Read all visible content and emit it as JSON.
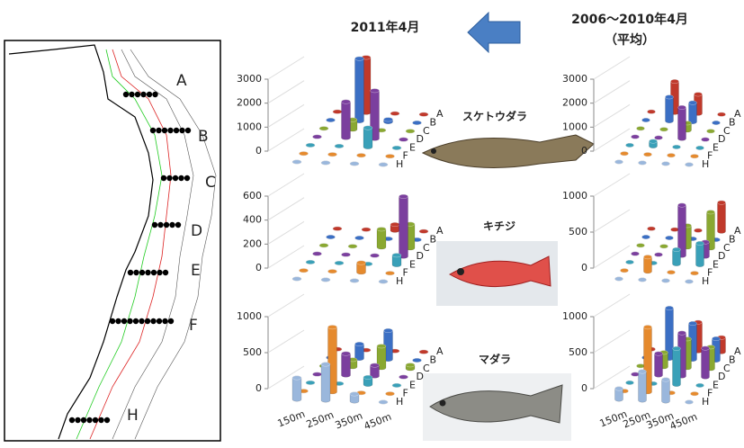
{
  "header": {
    "title_2011": "2011年4月",
    "title_avg": "2006～2010年4月",
    "title_avg_sub": "（平均）"
  },
  "map": {
    "lines": [
      "A",
      "B",
      "C",
      "D",
      "E",
      "F",
      "H"
    ]
  },
  "fish": [
    "スケトウダラ",
    "キチジ",
    "マダラ"
  ],
  "chart_data": [
    {
      "type": "bar3d",
      "categories": [
        null,
        null,
        null,
        null
      ],
      "ylim": [
        0,
        3000
      ],
      "yticks": [
        0,
        1000,
        2000,
        3000
      ],
      "series": [
        {
          "name": "A",
          "color": "#c0392b",
          "values": [
            0,
            2300,
            0,
            0
          ]
        },
        {
          "name": "B",
          "color": "#3b6fc4",
          "values": [
            0,
            2600,
            100,
            0
          ]
        },
        {
          "name": "C",
          "color": "#8aa832",
          "values": [
            0,
            400,
            0,
            0
          ]
        },
        {
          "name": "D",
          "color": "#7b3f9e",
          "values": [
            0,
            1500,
            2000,
            0
          ]
        },
        {
          "name": "E",
          "color": "#3aa0b8",
          "values": [
            0,
            0,
            800,
            0
          ]
        },
        {
          "name": "F",
          "color": "#e58a2e",
          "values": [
            0,
            0,
            0,
            0
          ]
        },
        {
          "name": "H",
          "color": "#9ab7dc",
          "values": [
            0,
            0,
            0,
            0
          ]
        }
      ]
    },
    {
      "type": "bar3d",
      "categories": [
        null,
        null,
        null,
        null
      ],
      "ylim": [
        0,
        3000
      ],
      "yticks": [
        0,
        1000,
        2000,
        3000
      ],
      "series": [
        {
          "name": "A",
          "color": "#c0392b",
          "values": [
            0,
            1300,
            800,
            0
          ]
        },
        {
          "name": "B",
          "color": "#3b6fc4",
          "values": [
            0,
            1000,
            800,
            0
          ]
        },
        {
          "name": "C",
          "color": "#8aa832",
          "values": [
            0,
            0,
            300,
            0
          ]
        },
        {
          "name": "D",
          "color": "#7b3f9e",
          "values": [
            0,
            0,
            1300,
            0
          ]
        },
        {
          "name": "E",
          "color": "#3aa0b8",
          "values": [
            0,
            200,
            0,
            0
          ]
        },
        {
          "name": "F",
          "color": "#e58a2e",
          "values": [
            0,
            0,
            0,
            0
          ]
        },
        {
          "name": "H",
          "color": "#9ab7dc",
          "values": [
            0,
            0,
            0,
            0
          ]
        }
      ]
    },
    {
      "type": "bar3d",
      "categories": [
        null,
        null,
        null,
        null
      ],
      "ylim": [
        0,
        600
      ],
      "yticks": [
        0,
        200,
        400,
        600
      ],
      "series": [
        {
          "name": "A",
          "color": "#c0392b",
          "values": [
            0,
            0,
            50,
            0
          ]
        },
        {
          "name": "B",
          "color": "#3b6fc4",
          "values": [
            0,
            0,
            0,
            0
          ]
        },
        {
          "name": "C",
          "color": "#8aa832",
          "values": [
            0,
            0,
            150,
            200
          ]
        },
        {
          "name": "D",
          "color": "#7b3f9e",
          "values": [
            0,
            0,
            0,
            500
          ]
        },
        {
          "name": "E",
          "color": "#3aa0b8",
          "values": [
            0,
            0,
            0,
            80
          ]
        },
        {
          "name": "F",
          "color": "#e58a2e",
          "values": [
            0,
            0,
            80,
            0
          ]
        },
        {
          "name": "H",
          "color": "#9ab7dc",
          "values": [
            0,
            0,
            0,
            0
          ]
        }
      ]
    },
    {
      "type": "bar3d",
      "categories": [
        null,
        null,
        null,
        null
      ],
      "ylim": [
        0,
        1000
      ],
      "yticks": [
        0,
        500,
        1000
      ],
      "series": [
        {
          "name": "A",
          "color": "#c0392b",
          "values": [
            0,
            0,
            0,
            400
          ]
        },
        {
          "name": "B",
          "color": "#3b6fc4",
          "values": [
            0,
            0,
            0,
            0
          ]
        },
        {
          "name": "C",
          "color": "#8aa832",
          "values": [
            0,
            0,
            300,
            500
          ]
        },
        {
          "name": "D",
          "color": "#7b3f9e",
          "values": [
            0,
            0,
            700,
            200
          ]
        },
        {
          "name": "E",
          "color": "#3aa0b8",
          "values": [
            0,
            0,
            200,
            300
          ]
        },
        {
          "name": "F",
          "color": "#e58a2e",
          "values": [
            0,
            200,
            0,
            0
          ]
        },
        {
          "name": "H",
          "color": "#9ab7dc",
          "values": [
            0,
            0,
            0,
            0
          ]
        }
      ]
    },
    {
      "type": "bar3d",
      "categories": [
        "150m",
        "250m",
        "350m",
        "450m"
      ],
      "ylim": [
        0,
        1000
      ],
      "yticks": [
        0,
        500,
        1000
      ],
      "series": [
        {
          "name": "A",
          "color": "#c0392b",
          "values": [
            0,
            0,
            0,
            0
          ]
        },
        {
          "name": "B",
          "color": "#3b6fc4",
          "values": [
            0,
            200,
            400,
            0
          ]
        },
        {
          "name": "C",
          "color": "#8aa832",
          "values": [
            0,
            100,
            300,
            50
          ]
        },
        {
          "name": "D",
          "color": "#7b3f9e",
          "values": [
            0,
            300,
            150,
            0
          ]
        },
        {
          "name": "E",
          "color": "#3aa0b8",
          "values": [
            0,
            0,
            100,
            0
          ]
        },
        {
          "name": "F",
          "color": "#e58a2e",
          "values": [
            0,
            900,
            0,
            0
          ]
        },
        {
          "name": "H",
          "color": "#9ab7dc",
          "values": [
            300,
            500,
            100,
            0
          ]
        }
      ]
    },
    {
      "type": "bar3d",
      "categories": [
        "150m",
        "250m",
        "350m",
        "450m"
      ],
      "ylim": [
        0,
        1000
      ],
      "yticks": [
        0,
        500,
        1000
      ],
      "series": [
        {
          "name": "A",
          "color": "#c0392b",
          "values": [
            0,
            0,
            400,
            200
          ]
        },
        {
          "name": "B",
          "color": "#3b6fc4",
          "values": [
            0,
            700,
            500,
            300
          ]
        },
        {
          "name": "C",
          "color": "#8aa832",
          "values": [
            0,
            200,
            400,
            300
          ]
        },
        {
          "name": "D",
          "color": "#7b3f9e",
          "values": [
            0,
            300,
            600,
            400
          ]
        },
        {
          "name": "E",
          "color": "#3aa0b8",
          "values": [
            0,
            0,
            500,
            0
          ]
        },
        {
          "name": "F",
          "color": "#e58a2e",
          "values": [
            0,
            900,
            0,
            0
          ]
        },
        {
          "name": "H",
          "color": "#9ab7dc",
          "values": [
            150,
            400,
            300,
            0
          ]
        }
      ]
    }
  ]
}
